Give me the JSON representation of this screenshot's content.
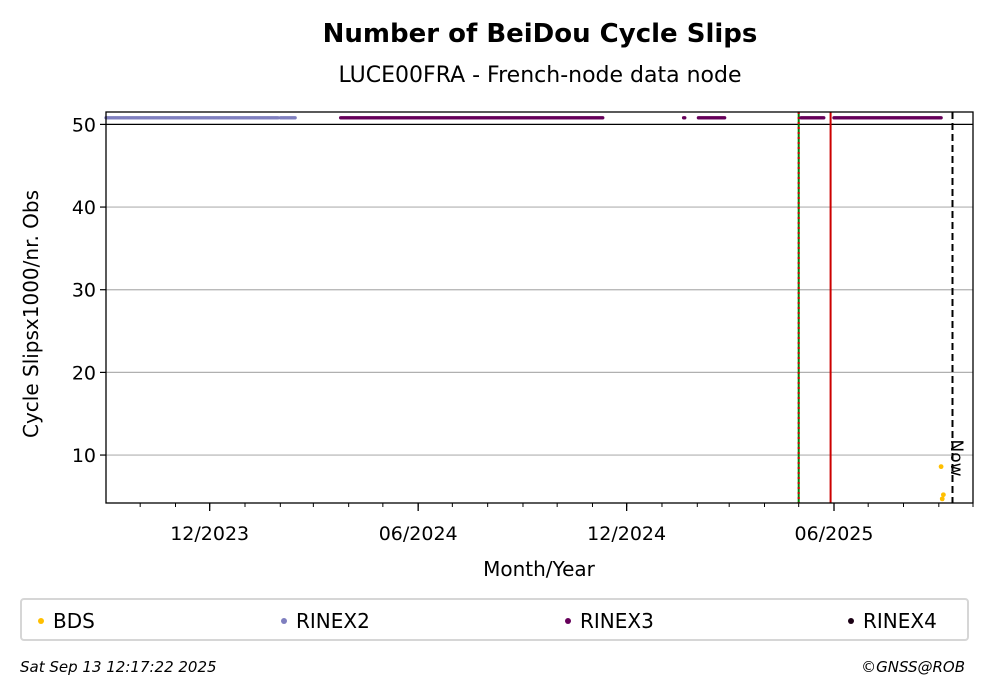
{
  "chart_data": {
    "type": "scatter",
    "title": "Number of BeiDou Cycle Slips",
    "subtitle": "LUCE00FRA - French-node data node",
    "xlabel": "Month/Year",
    "ylabel": "Cycle Slipsx1000/nr. Obs",
    "x_tick_labels": [
      "12/2023",
      "06/2024",
      "12/2024",
      "06/2025"
    ],
    "x_ticks": [
      "2023-12-01",
      "2024-06-01",
      "2024-12-01",
      "2025-06-01"
    ],
    "xlim": [
      "2023-09-01",
      "2025-10-01"
    ],
    "ylim": [
      4.2,
      51.5
    ],
    "y_ticks": [
      10,
      20,
      30,
      40,
      50
    ],
    "grid": "horizontal",
    "reference_line_y": 50,
    "vertical_lines": [
      {
        "date": "2025-05-01",
        "color": "#008000",
        "style": "solid"
      },
      {
        "date": "2025-05-01",
        "color": "#cc0000",
        "style": "dotted"
      },
      {
        "date": "2025-05-29",
        "color": "#cc0000",
        "style": "solid"
      },
      {
        "date": "2025-09-13",
        "color": "#000000",
        "style": "dashed",
        "label": "Now"
      }
    ],
    "series": [
      {
        "name": "BDS",
        "color": "#ffbf00",
        "points": [
          {
            "x": "2025-09-03",
            "y": 8.6
          },
          {
            "x": "2025-09-05",
            "y": 5.2
          },
          {
            "x": "2025-09-04",
            "y": 4.7
          }
        ]
      },
      {
        "name": "RINEX2",
        "color": "#7f7fbf",
        "ranges": [
          {
            "start": "2023-09-01",
            "end": "2024-01-30",
            "y": 50.8
          },
          {
            "start": "2024-02-01",
            "end": "2024-02-14",
            "y": 50.8
          }
        ]
      },
      {
        "name": "RINEX3",
        "color": "#66005a",
        "ranges": [
          {
            "start": "2024-03-25",
            "end": "2024-11-10",
            "y": 50.8
          },
          {
            "start": "2025-01-20",
            "end": "2025-01-21",
            "y": 50.8
          },
          {
            "start": "2025-02-02",
            "end": "2025-02-25",
            "y": 50.8
          },
          {
            "start": "2025-05-03",
            "end": "2025-05-23",
            "y": 50.8
          },
          {
            "start": "2025-06-01",
            "end": "2025-09-03",
            "y": 50.8
          }
        ]
      },
      {
        "name": "RINEX4",
        "color": "#1a0014",
        "points": []
      }
    ],
    "legend_position": "bottom"
  },
  "legend": [
    {
      "label": "BDS",
      "color": "#ffbf00"
    },
    {
      "label": "RINEX2",
      "color": "#7f7fbf"
    },
    {
      "label": "RINEX3",
      "color": "#66005a"
    },
    {
      "label": "RINEX4",
      "color": "#1a0014"
    }
  ],
  "now_label": "Now",
  "footer": {
    "timestamp": "Sat Sep 13 12:17:22 2025",
    "credit": "©GNSS@ROB"
  }
}
